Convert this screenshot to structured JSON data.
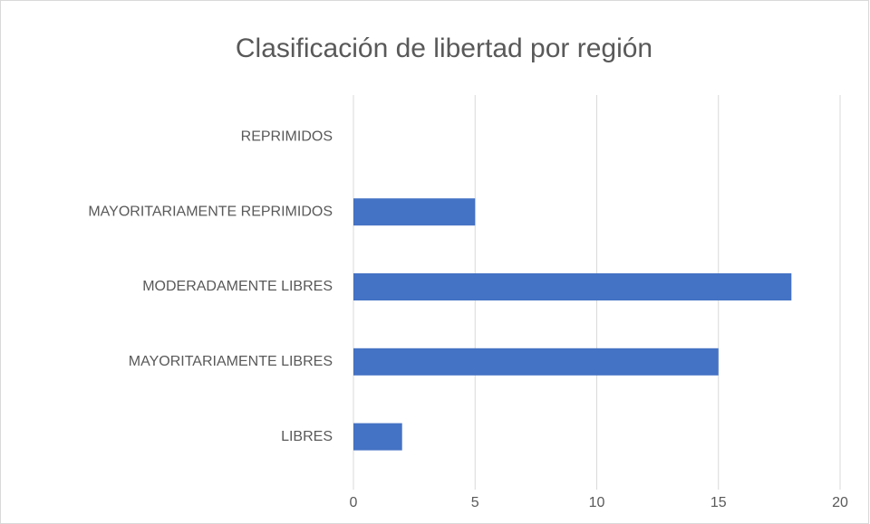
{
  "chart_data": {
    "type": "hbar",
    "title": "Clasificación de libertad por región",
    "categories": [
      "REPRIMIDOS",
      "MAYORITARIAMENTE REPRIMIDOS",
      "MODERADAMENTE LIBRES",
      "MAYORITARIAMENTE LIBRES",
      "LIBRES"
    ],
    "values": [
      0,
      5,
      18,
      15,
      2
    ],
    "color": "#4472c4",
    "xlim": [
      0,
      20
    ],
    "xticks": [
      0,
      5,
      10,
      15,
      20
    ],
    "grid": true
  }
}
